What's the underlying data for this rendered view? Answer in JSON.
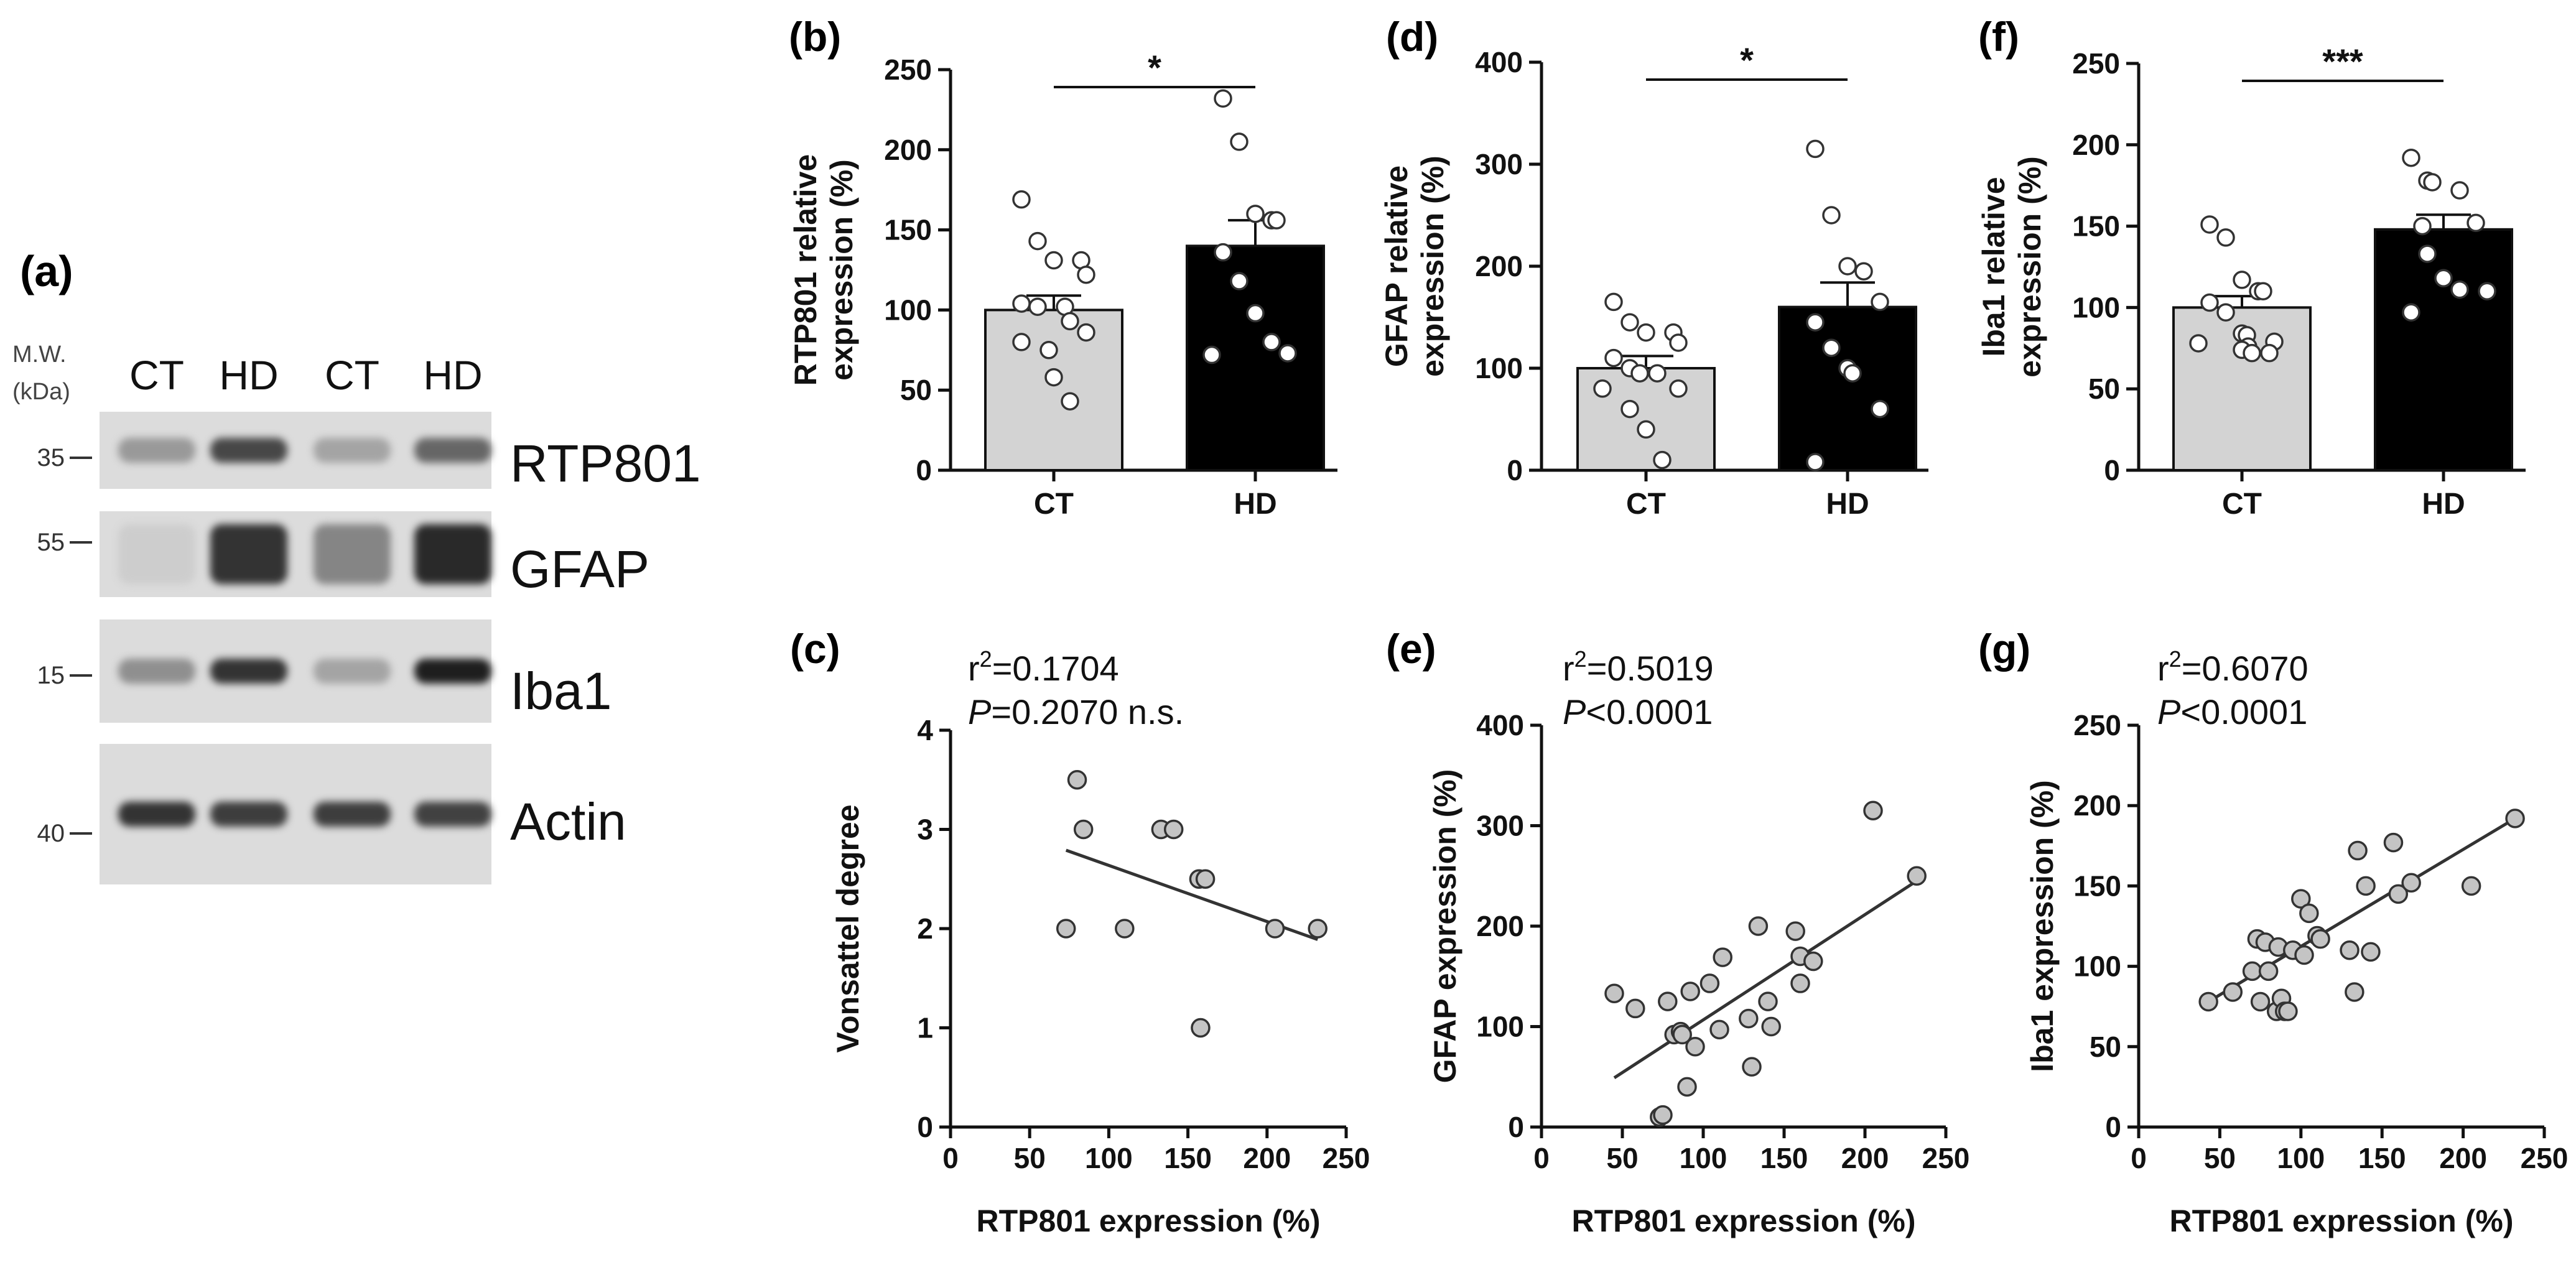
{
  "figure": {
    "panel_a": {
      "label": "(a)",
      "mw_header": "M.W.",
      "mw_unit": "(kDa)",
      "lanes": [
        "CT",
        "HD",
        "CT",
        "HD"
      ],
      "rows": [
        {
          "protein": "RTP801",
          "marker": "35",
          "intensity": [
            0.35,
            0.75,
            0.3,
            0.6
          ]
        },
        {
          "protein": "GFAP",
          "marker": "55",
          "intensity": [
            0.1,
            0.85,
            0.45,
            0.9
          ]
        },
        {
          "protein": "Iba1",
          "marker": "15",
          "intensity": [
            0.4,
            0.85,
            0.3,
            0.95
          ]
        },
        {
          "protein": "Actin",
          "marker": "40",
          "intensity": [
            0.85,
            0.8,
            0.8,
            0.78
          ]
        }
      ]
    }
  },
  "chart_data": [
    {
      "id": "b",
      "label": "(b)",
      "type": "bar",
      "ylabel": [
        "RTP801 relative",
        "expression  (%)"
      ],
      "ylim": [
        0,
        250
      ],
      "yticks": [
        0,
        50,
        100,
        150,
        200,
        250
      ],
      "categories": [
        "CT",
        "HD"
      ],
      "bar_colors": [
        "#d3d3d3",
        "#000000"
      ],
      "values": [
        100,
        140
      ],
      "sem": [
        9,
        16
      ],
      "significance": "*",
      "points": [
        [
          169,
          143,
          131,
          131,
          122,
          104,
          102,
          102,
          93,
          86,
          80,
          75,
          58,
          43
        ],
        [
          232,
          205,
          160,
          156,
          156,
          136,
          118,
          98,
          80,
          73,
          72
        ]
      ]
    },
    {
      "id": "c",
      "label": "(c)",
      "type": "scatter",
      "stats": {
        "r2_value": "=0.1704",
        "p_value": "=0.2070 n.s."
      },
      "xlabel": "RTP801 expression  (%)",
      "ylabel": "Vonsattel degree",
      "xlim": [
        0,
        250
      ],
      "ylim": [
        0,
        4
      ],
      "xticks": [
        0,
        50,
        100,
        150,
        200,
        250
      ],
      "yticks": [
        0,
        1,
        2,
        3,
        4
      ],
      "x": [
        80,
        84,
        73,
        110,
        133,
        141,
        157,
        161,
        158,
        205,
        232
      ],
      "y": [
        3.5,
        3.0,
        2.0,
        2.0,
        3.0,
        3.0,
        2.5,
        2.5,
        1.0,
        2.0,
        2.0
      ],
      "fit": {
        "x": [
          73,
          232
        ],
        "y": [
          2.79,
          1.89
        ]
      }
    },
    {
      "id": "d",
      "label": "(d)",
      "type": "bar",
      "ylabel": [
        "GFAP relative",
        "expression  (%)"
      ],
      "ylim": [
        0,
        400
      ],
      "yticks": [
        0,
        100,
        200,
        300,
        400
      ],
      "categories": [
        "CT",
        "HD"
      ],
      "bar_colors": [
        "#d3d3d3",
        "#000000"
      ],
      "values": [
        100,
        160
      ],
      "sem": [
        12,
        24
      ],
      "significance": "*",
      "points": [
        [
          165,
          145,
          135,
          135,
          125,
          110,
          100,
          95,
          95,
          80,
          80,
          60,
          40,
          10
        ],
        [
          315,
          250,
          200,
          195,
          165,
          145,
          120,
          100,
          95,
          60,
          8
        ]
      ]
    },
    {
      "id": "e",
      "label": "(e)",
      "type": "scatter",
      "stats": {
        "r2_value": "=0.5019",
        "p_value": "<0.0001"
      },
      "xlabel": "RTP801 expression  (%)",
      "ylabel": "GFAP expression  (%)",
      "xlim": [
        0,
        250
      ],
      "ylim": [
        0,
        400
      ],
      "xticks": [
        0,
        50,
        100,
        150,
        200,
        250
      ],
      "yticks": [
        0,
        100,
        200,
        300,
        400
      ],
      "x": [
        45,
        58,
        73,
        75,
        78,
        82,
        86,
        87,
        90,
        92,
        95,
        104,
        110,
        112,
        128,
        130,
        134,
        140,
        142,
        157,
        160,
        160,
        168,
        205,
        232
      ],
      "y": [
        133,
        118,
        10,
        12,
        125,
        92,
        95,
        92,
        40,
        135,
        80,
        143,
        97,
        169,
        108,
        60,
        200,
        125,
        100,
        195,
        170,
        143,
        165,
        315,
        250
      ],
      "fit": {
        "x": [
          45,
          232
        ],
        "y": [
          49,
          245
        ]
      }
    },
    {
      "id": "f",
      "label": "(f)",
      "type": "bar",
      "ylabel": [
        "Iba1 relative",
        "expression  (%)"
      ],
      "ylim": [
        0,
        250
      ],
      "yticks": [
        0,
        50,
        100,
        150,
        200,
        250
      ],
      "categories": [
        "CT",
        "HD"
      ],
      "bar_colors": [
        "#d3d3d3",
        "#000000"
      ],
      "values": [
        100,
        148
      ],
      "sem": [
        7,
        9
      ],
      "significance": "***",
      "points": [
        [
          151,
          143,
          117,
          110,
          110,
          103,
          97,
          84,
          83,
          79,
          78,
          76,
          74,
          72,
          72
        ],
        [
          192,
          178,
          177,
          172,
          152,
          150,
          133,
          118,
          111,
          110,
          97
        ]
      ]
    },
    {
      "id": "g",
      "label": "(g)",
      "type": "scatter",
      "stats": {
        "r2_value": "=0.6070",
        "p_value": "<0.0001"
      },
      "xlabel": "RTP801 expression  (%)",
      "ylabel": "Iba1 expression  (%)",
      "xlim": [
        0,
        250
      ],
      "ylim": [
        0,
        250
      ],
      "xticks": [
        0,
        50,
        100,
        150,
        200,
        250
      ],
      "yticks": [
        0,
        50,
        100,
        150,
        200,
        250
      ],
      "x": [
        43,
        58,
        70,
        73,
        75,
        78,
        80,
        85,
        86,
        88,
        90,
        92,
        95,
        100,
        102,
        105,
        110,
        112,
        130,
        133,
        135,
        140,
        143,
        157,
        160,
        168,
        205,
        232
      ],
      "y": [
        78,
        84,
        97,
        117,
        78,
        115,
        97,
        72,
        112,
        80,
        72,
        72,
        110,
        142,
        107,
        133,
        119,
        117,
        110,
        84,
        172,
        150,
        109,
        177,
        145,
        152,
        150,
        192
      ],
      "fit": {
        "x": [
          43,
          232
        ],
        "y": [
          78,
          192
        ]
      }
    }
  ]
}
